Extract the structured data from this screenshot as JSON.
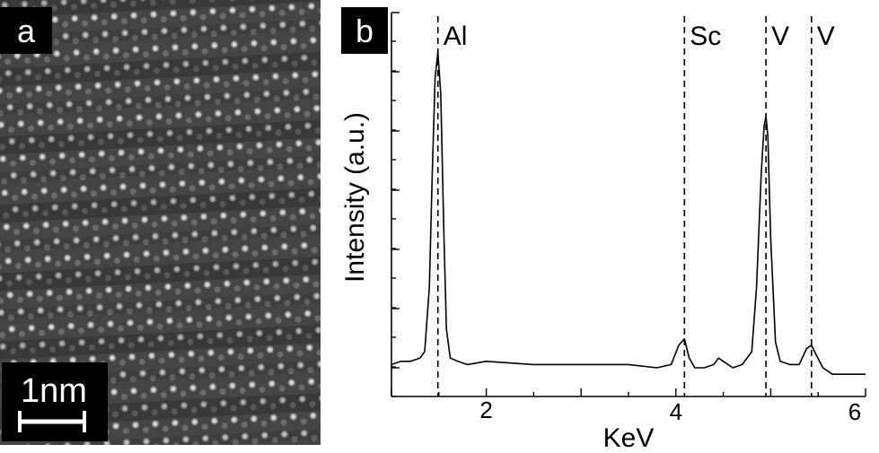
{
  "panel_a": {
    "label": "a",
    "scale_bar_label": "1nm"
  },
  "panel_b": {
    "label": "b"
  },
  "chart_data": {
    "type": "line",
    "title": "",
    "xlabel": "KeV",
    "ylabel": "Intensity (a.u.)",
    "xlim": [
      1.0,
      6.0
    ],
    "ylim": [
      0,
      1
    ],
    "x_ticks": [
      "2",
      "4",
      "6"
    ],
    "y_tick_labels_shown": false,
    "grid": false,
    "markers": [
      {
        "label": "Al",
        "x": 1.49
      },
      {
        "label": "Sc",
        "x": 4.09
      },
      {
        "label": "V",
        "x": 4.95
      },
      {
        "label": "V",
        "x": 5.43
      }
    ],
    "series": [
      {
        "x": [
          1.0,
          1.1,
          1.2,
          1.3,
          1.35,
          1.4,
          1.43,
          1.46,
          1.49,
          1.52,
          1.55,
          1.58,
          1.62,
          1.7,
          1.8,
          2.0,
          2.5,
          3.0,
          3.5,
          3.8,
          3.95,
          4.03,
          4.09,
          4.14,
          4.2,
          4.3,
          4.4,
          4.45,
          4.5,
          4.6,
          4.7,
          4.8,
          4.85,
          4.9,
          4.93,
          4.95,
          4.97,
          5.0,
          5.05,
          5.1,
          5.2,
          5.3,
          5.38,
          5.43,
          5.48,
          5.55,
          5.65,
          5.8,
          6.0
        ],
        "y": [
          0.11,
          0.12,
          0.12,
          0.13,
          0.15,
          0.35,
          0.7,
          1.0,
          1.08,
          0.95,
          0.55,
          0.22,
          0.13,
          0.12,
          0.11,
          0.12,
          0.11,
          0.11,
          0.11,
          0.1,
          0.11,
          0.17,
          0.19,
          0.13,
          0.1,
          0.1,
          0.11,
          0.13,
          0.12,
          0.1,
          0.11,
          0.15,
          0.35,
          0.7,
          0.85,
          0.88,
          0.82,
          0.5,
          0.18,
          0.12,
          0.11,
          0.11,
          0.16,
          0.17,
          0.14,
          0.1,
          0.08,
          0.08,
          0.08
        ]
      }
    ]
  }
}
